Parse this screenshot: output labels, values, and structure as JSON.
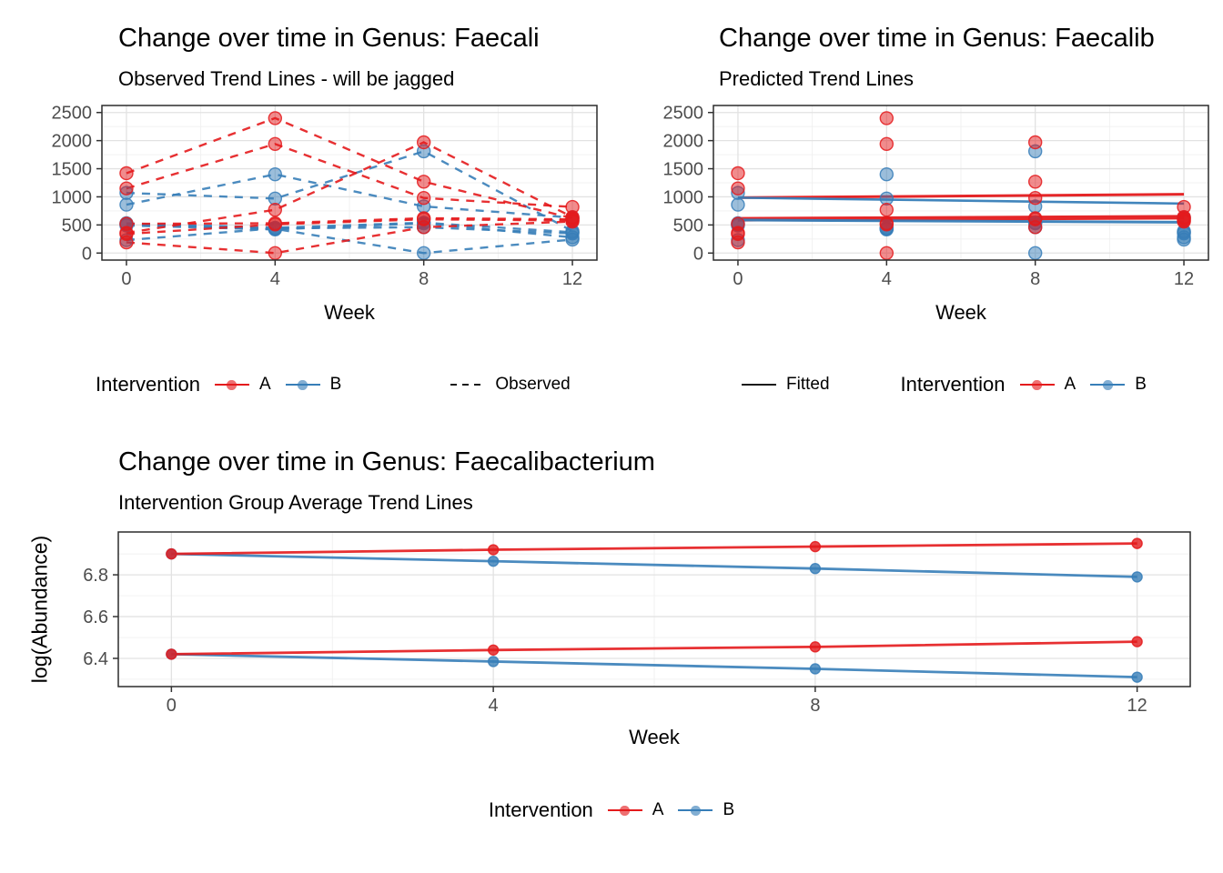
{
  "colors": {
    "background": "#FFFFFF",
    "intervention_a": "#E41A1C",
    "intervention_b": "#377EB8",
    "key_line": "#1A1A1A",
    "grid_major": "#E2E2E2",
    "grid_minor": "#F0F0F0",
    "panel_border": "#2B2B2B",
    "tick_label": "#4D4D4D",
    "title": "#000000"
  },
  "chart_data": [
    {
      "id": "observed",
      "type": "line",
      "title": "Change over time in Genus: Faecali",
      "subtitle": "Observed Trend Lines - will be jagged",
      "xlabel": "Week",
      "ylabel": "",
      "x_ticks": [
        0,
        4,
        8,
        12
      ],
      "x_minor": [
        2,
        6,
        10
      ],
      "y_ticks": [
        0,
        500,
        1000,
        1500,
        2000,
        2500
      ],
      "y_minor": [
        250,
        750,
        1250,
        1750,
        2250
      ],
      "xlim": [
        -0.66,
        12.66
      ],
      "ylim": [
        -125,
        2625
      ],
      "x": [
        0,
        4,
        8,
        12
      ],
      "line_style": "dashed",
      "grid": true,
      "legend_position": "bottom",
      "series": [
        {
          "name": "A-1",
          "group": "A",
          "values": [
            1420,
            2400,
            1270,
            620
          ]
        },
        {
          "name": "A-2",
          "group": "A",
          "values": [
            1150,
            1940,
            980,
            820
          ]
        },
        {
          "name": "A-3",
          "group": "A",
          "values": [
            360,
            770,
            1970,
            640
          ]
        },
        {
          "name": "A-4",
          "group": "A",
          "values": [
            520,
            530,
            620,
            600
          ]
        },
        {
          "name": "A-5",
          "group": "A",
          "values": [
            340,
            510,
            600,
            580
          ]
        },
        {
          "name": "A-6",
          "group": "A",
          "values": [
            190,
            0,
            460,
            560
          ]
        },
        {
          "name": "B-1",
          "group": "B",
          "values": [
            1070,
            970,
            1810,
            390
          ]
        },
        {
          "name": "B-2",
          "group": "B",
          "values": [
            860,
            1400,
            830,
            630
          ]
        },
        {
          "name": "B-3",
          "group": "B",
          "values": [
            530,
            450,
            540,
            370
          ]
        },
        {
          "name": "B-4",
          "group": "B",
          "values": [
            510,
            430,
            0,
            240
          ]
        },
        {
          "name": "B-5",
          "group": "B",
          "values": [
            490,
            420,
            530,
            280
          ]
        },
        {
          "name": "B-6",
          "group": "B",
          "values": [
            230,
            440,
            460,
            350
          ]
        }
      ],
      "legend": {
        "title": "Intervention",
        "items": [
          {
            "label": "A"
          },
          {
            "label": "B"
          }
        ],
        "linetype_label": "Observed"
      }
    },
    {
      "id": "predicted",
      "type": "scatter",
      "title": "Change over time in Genus: Faecalib",
      "subtitle": "Predicted Trend Lines",
      "xlabel": "Week",
      "ylabel": "",
      "x_ticks": [
        0,
        4,
        8,
        12
      ],
      "x_minor": [
        2,
        6,
        10
      ],
      "y_ticks": [
        0,
        500,
        1000,
        1500,
        2000,
        2500
      ],
      "y_minor": [
        250,
        750,
        1250,
        1750,
        2250
      ],
      "xlim": [
        -0.66,
        12.66
      ],
      "ylim": [
        -125,
        2625
      ],
      "x": [
        0,
        4,
        8,
        12
      ],
      "line_style": "none",
      "grid": true,
      "legend_position": "bottom",
      "series": [
        {
          "name": "A-1",
          "group": "A",
          "values": [
            1420,
            2400,
            1270,
            620
          ]
        },
        {
          "name": "A-2",
          "group": "A",
          "values": [
            1150,
            1940,
            980,
            820
          ]
        },
        {
          "name": "A-3",
          "group": "A",
          "values": [
            360,
            770,
            1970,
            640
          ]
        },
        {
          "name": "A-4",
          "group": "A",
          "values": [
            520,
            530,
            620,
            600
          ]
        },
        {
          "name": "A-5",
          "group": "A",
          "values": [
            340,
            510,
            600,
            580
          ]
        },
        {
          "name": "A-6",
          "group": "A",
          "values": [
            190,
            0,
            460,
            560
          ]
        },
        {
          "name": "B-1",
          "group": "B",
          "values": [
            1070,
            970,
            1810,
            390
          ]
        },
        {
          "name": "B-2",
          "group": "B",
          "values": [
            860,
            1400,
            830,
            630
          ]
        },
        {
          "name": "B-3",
          "group": "B",
          "values": [
            530,
            450,
            540,
            370
          ]
        },
        {
          "name": "B-4",
          "group": "B",
          "values": [
            510,
            430,
            0,
            240
          ]
        },
        {
          "name": "B-5",
          "group": "B",
          "values": [
            490,
            420,
            530,
            280
          ]
        },
        {
          "name": "B-6",
          "group": "B",
          "values": [
            230,
            440,
            460,
            350
          ]
        }
      ],
      "fitted": [
        {
          "group": "A",
          "y0": 985,
          "y1": 1045,
          "width": 3
        },
        {
          "group": "B",
          "y0": 985,
          "y1": 880,
          "width": 2.6
        },
        {
          "group": "A",
          "y0": 600,
          "y1": 638,
          "width": 5
        },
        {
          "group": "B",
          "y0": 588,
          "y1": 548,
          "width": 3
        }
      ],
      "legend": {
        "fitted_label": "Fitted",
        "title": "Intervention",
        "items": [
          {
            "label": "A"
          },
          {
            "label": "B"
          }
        ]
      }
    },
    {
      "id": "average",
      "type": "line",
      "title": "Change over time in Genus: Faecalibacterium",
      "subtitle": "Intervention Group Average Trend Lines",
      "xlabel": "Week",
      "ylabel": "log(Abundance)",
      "x_ticks": [
        0,
        4,
        8,
        12
      ],
      "x_minor": [
        2,
        6,
        10
      ],
      "y_ticks": [
        6.4,
        6.6,
        6.8
      ],
      "y_minor": [
        6.3,
        6.5,
        6.7,
        6.9
      ],
      "xlim": [
        -0.66,
        12.66
      ],
      "ylim": [
        6.265,
        7.005
      ],
      "x": [
        0,
        4,
        8,
        12
      ],
      "line_style": "solid",
      "grid": true,
      "legend_position": "bottom",
      "series": [
        {
          "name": "A-upper",
          "group": "A",
          "values": [
            6.9,
            6.92,
            6.935,
            6.95
          ]
        },
        {
          "name": "B-upper",
          "group": "B",
          "values": [
            6.9,
            6.865,
            6.83,
            6.79
          ]
        },
        {
          "name": "A-lower",
          "group": "A",
          "values": [
            6.42,
            6.44,
            6.455,
            6.48
          ]
        },
        {
          "name": "B-lower",
          "group": "B",
          "values": [
            6.42,
            6.385,
            6.35,
            6.31
          ]
        }
      ],
      "legend": {
        "title": "Intervention",
        "items": [
          {
            "label": "A"
          },
          {
            "label": "B"
          }
        ]
      }
    }
  ]
}
